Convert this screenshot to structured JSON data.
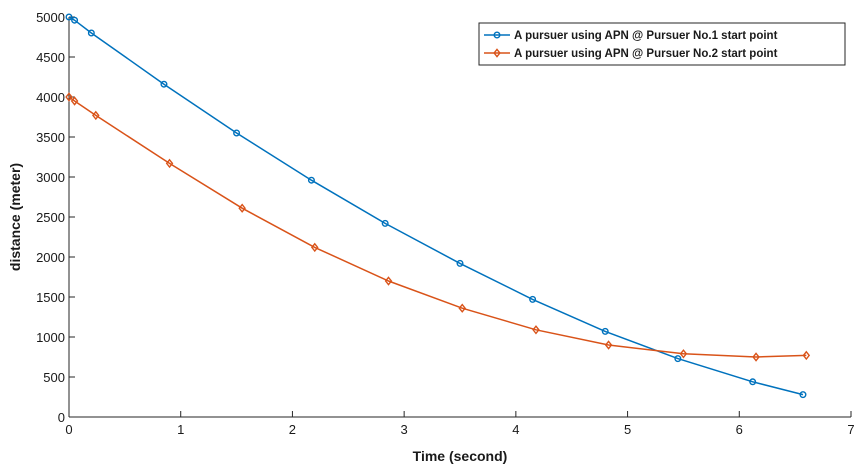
{
  "chart_data": {
    "type": "line",
    "title": "",
    "xlabel": "Time (second)",
    "ylabel": "distance (meter)",
    "xlim": [
      0,
      7
    ],
    "ylim": [
      0,
      5000
    ],
    "xticks": [
      0,
      1,
      2,
      3,
      4,
      5,
      6,
      7
    ],
    "yticks": [
      0,
      500,
      1000,
      1500,
      2000,
      2500,
      3000,
      3500,
      4000,
      4500,
      5000
    ],
    "grid": false,
    "legend_position": "top-right",
    "series": [
      {
        "name": "A pursuer using APN @ Pursuer No.1 start point",
        "color": "#0072BD",
        "marker": "circle",
        "x": [
          0,
          0.05,
          0.2,
          0.85,
          1.5,
          2.17,
          2.83,
          3.5,
          4.15,
          4.8,
          5.45,
          6.12,
          6.57
        ],
        "y": [
          5000,
          4960,
          4800,
          4160,
          3550,
          2960,
          2420,
          1920,
          1470,
          1070,
          730,
          440,
          280
        ]
      },
      {
        "name": "A pursuer using APN @ Pursuer No.2 start point",
        "color": "#D95319",
        "marker": "diamond",
        "x": [
          0,
          0.05,
          0.24,
          0.9,
          1.55,
          2.2,
          2.86,
          3.52,
          4.18,
          4.83,
          5.5,
          6.15,
          6.6
        ],
        "y": [
          4000,
          3950,
          3770,
          3170,
          2610,
          2120,
          1700,
          1360,
          1090,
          900,
          790,
          750,
          770
        ]
      }
    ]
  }
}
